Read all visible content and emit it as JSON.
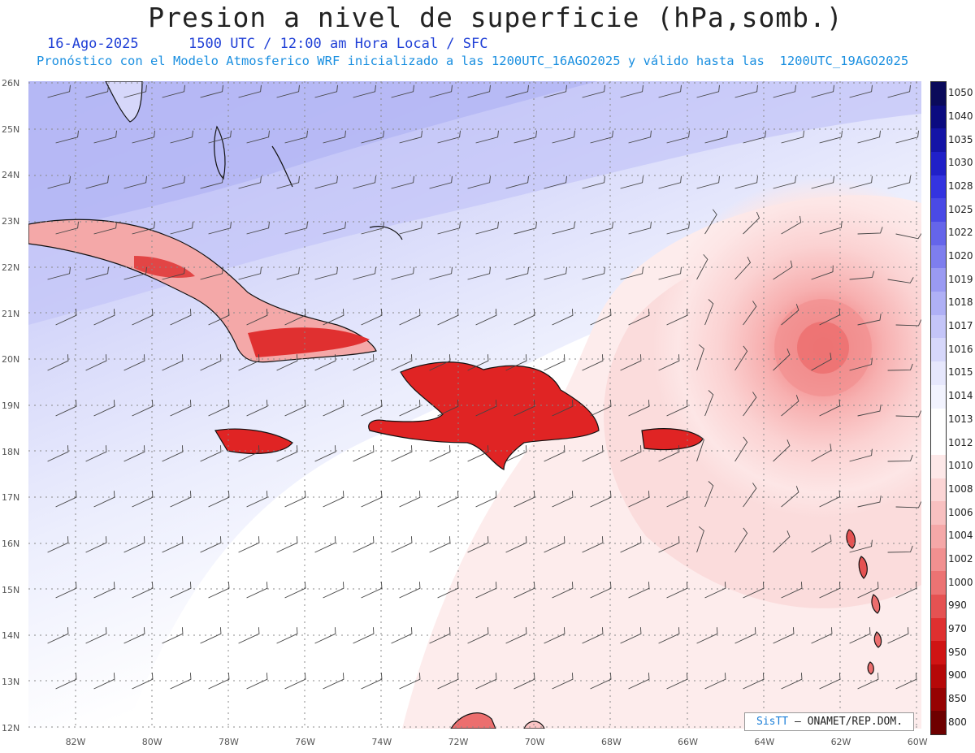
{
  "title": "Presion a nivel de superficie (hPa,somb.)",
  "date": "16-Ago-2025",
  "time_info": "1500 UTC / 12:00 am Hora Local / SFC",
  "forecast_info": "Pronóstico con el Modelo Atmosferico WRF inicializado a las 1200UTC_16AGO2025 y válido hasta las  1200UTC_19AGO2025",
  "lat_labels": [
    "26N",
    "25N",
    "24N",
    "23N",
    "22N",
    "21N",
    "20N",
    "19N",
    "18N",
    "17N",
    "16N",
    "15N",
    "14N",
    "13N",
    "12N"
  ],
  "lon_labels": [
    "82W",
    "80W",
    "78W",
    "76W",
    "74W",
    "72W",
    "70W",
    "68W",
    "66W",
    "64W",
    "62W",
    "60W"
  ],
  "colorbar": {
    "labels": [
      "1050",
      "1040",
      "1035",
      "1030",
      "1028",
      "1025",
      "1022",
      "1020",
      "1019",
      "1018",
      "1017",
      "1016",
      "1015",
      "1014",
      "1013",
      "1012",
      "1010",
      "1008",
      "1006",
      "1004",
      "1002",
      "1000",
      "990",
      "970",
      "950",
      "900",
      "850",
      "800"
    ],
    "colors": [
      "#0a0a5a",
      "#0b0b80",
      "#1414a6",
      "#2020c8",
      "#3434e0",
      "#4a4ae6",
      "#6565ea",
      "#7e7eee",
      "#9a9af2",
      "#afb0f5",
      "#c4c5f8",
      "#d6d7fa",
      "#e6e7fc",
      "#f2f3fe",
      "#ffffff",
      "#ffffff",
      "#fde8e8",
      "#fbd5d5",
      "#f8c0c0",
      "#f5a8a8",
      "#f19090",
      "#ec7373",
      "#e55252",
      "#df3030",
      "#d01414",
      "#b60808",
      "#960303",
      "#6e0000"
    ]
  },
  "credit": {
    "brand": "SisTT",
    "org": "– ONAMET/REP.DOM."
  }
}
